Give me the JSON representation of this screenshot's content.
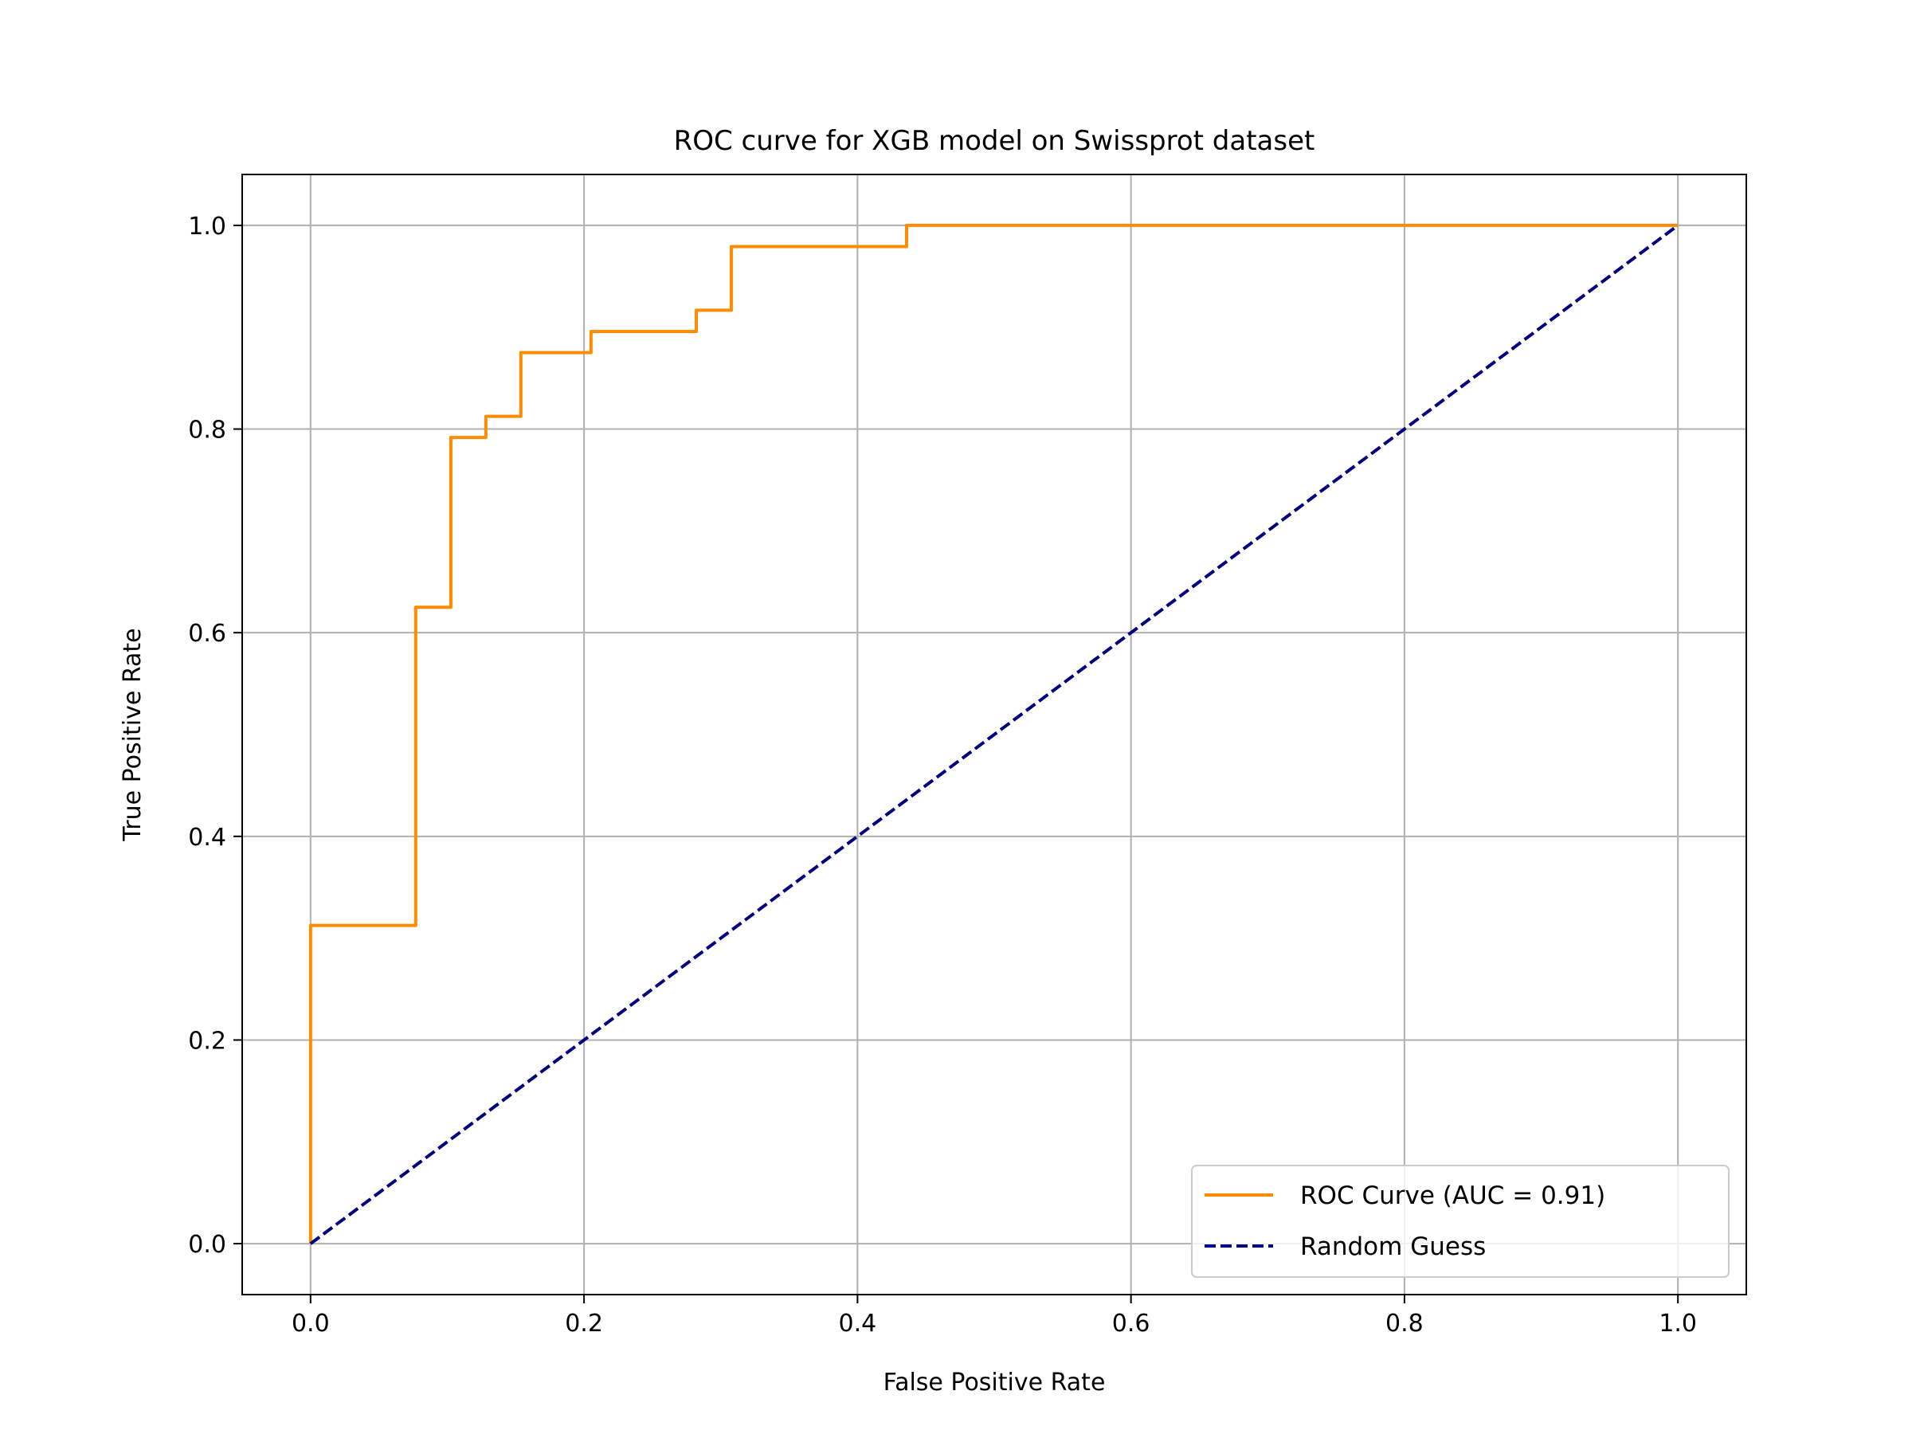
{
  "chart_data": {
    "type": "line",
    "title": "ROC curve for XGB model on Swissprot dataset",
    "xlabel": "False Positive Rate",
    "ylabel": "True Positive Rate",
    "xlim": [
      -0.05,
      1.05
    ],
    "ylim": [
      -0.05,
      1.05
    ],
    "xticks": [
      0.0,
      0.2,
      0.4,
      0.6,
      0.8,
      1.0
    ],
    "yticks": [
      0.0,
      0.2,
      0.4,
      0.6,
      0.8,
      1.0
    ],
    "xtick_labels": [
      "0.0",
      "0.2",
      "0.4",
      "0.6",
      "0.8",
      "1.0"
    ],
    "ytick_labels": [
      "0.0",
      "0.2",
      "0.4",
      "0.6",
      "0.8",
      "1.0"
    ],
    "grid": true,
    "legend_position": "bottom-right",
    "series": [
      {
        "name": "ROC Curve (AUC = 0.91)",
        "color": "#ff8c00",
        "style": "solid",
        "x": [
          0,
          0,
          0.0769,
          0.0769,
          0.1026,
          0.1026,
          0.1282,
          0.1282,
          0.1538,
          0.1538,
          0.2051,
          0.2051,
          0.2821,
          0.2821,
          0.3077,
          0.3077,
          0.4359,
          0.4359,
          1.0
        ],
        "y": [
          0,
          0.3125,
          0.3125,
          0.625,
          0.625,
          0.7917,
          0.7917,
          0.8125,
          0.8125,
          0.875,
          0.875,
          0.8958,
          0.8958,
          0.9167,
          0.9167,
          0.9792,
          0.9792,
          1.0,
          1.0
        ]
      },
      {
        "name": "Random Guess",
        "color": "#000080",
        "style": "dashed",
        "x": [
          0,
          1
        ],
        "y": [
          0,
          1
        ]
      }
    ]
  }
}
